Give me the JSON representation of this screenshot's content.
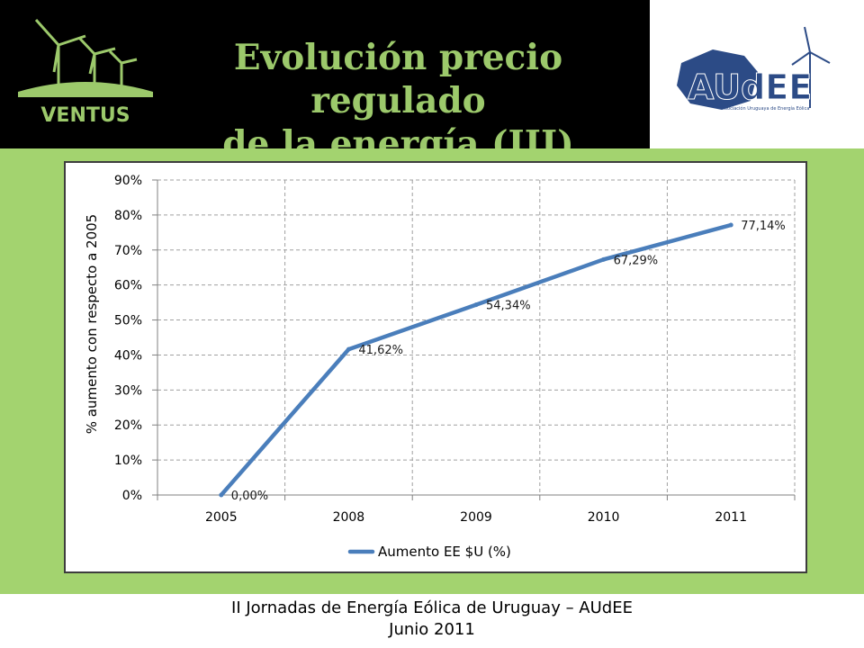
{
  "header": {
    "title_line1": "Evolución precio regulado",
    "title_line2": "de la energía (III)",
    "logo_left": "VENTUS",
    "logo_right": "AUdEE",
    "logo_right_tagline": "Asociación Uruguaya de Energía Eólica"
  },
  "colors": {
    "header_bg": "#000000",
    "title": "#9cc96b",
    "band": "#a3d36f",
    "series": "#4a7ebb"
  },
  "chart_data": {
    "type": "line",
    "categories": [
      "2005",
      "2008",
      "2009",
      "2010",
      "2011"
    ],
    "series": [
      {
        "name": "Aumento EE $U (%)",
        "values": [
          0.0,
          41.62,
          54.34,
          67.29,
          77.14
        ]
      }
    ],
    "data_labels": [
      "0,00%",
      "41,62%",
      "54,34%",
      "67,29%",
      "77,14%"
    ],
    "ylabel": "% aumento con respecto a 2005",
    "xlabel": "",
    "ylim": [
      0,
      90
    ],
    "yticks": [
      "0%",
      "10%",
      "20%",
      "30%",
      "40%",
      "50%",
      "60%",
      "70%",
      "80%",
      "90%"
    ],
    "grid": true,
    "legend": "bottom"
  },
  "footer": {
    "line1": "II Jornadas de Energía Eólica de Uruguay – AUdEE",
    "line2": "Junio 2011"
  }
}
